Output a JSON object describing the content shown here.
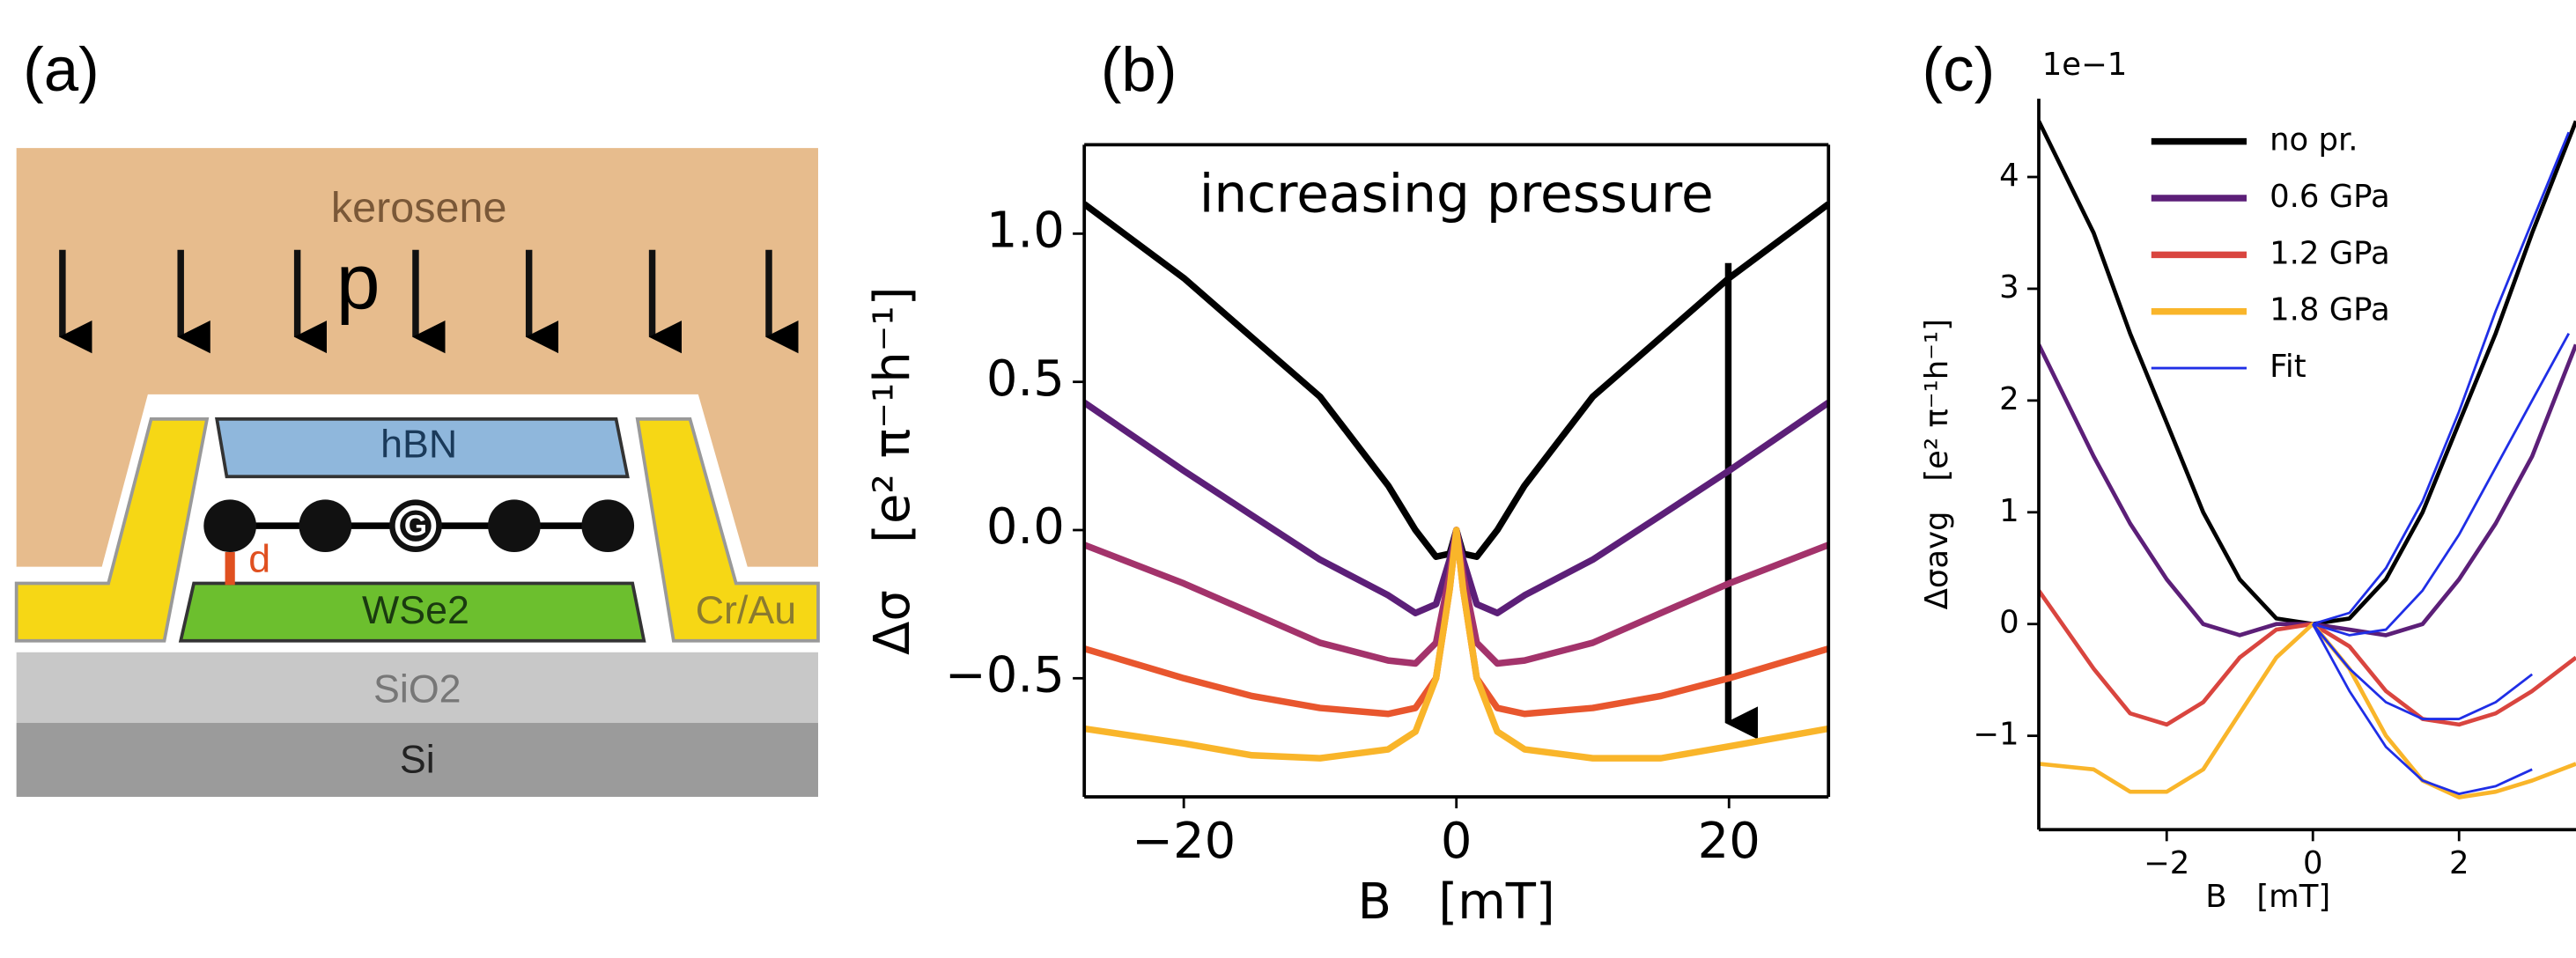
{
  "diagram": {
    "panel_label": "(a)",
    "medium": "kerosene",
    "force": "p",
    "top_layer": "hBN",
    "graphene": "G",
    "distance": "d",
    "substrate_layer": "WSe2",
    "contacts": "Cr/Au",
    "oxide": "SiO2",
    "base": "Si"
  },
  "chart_data": [
    {
      "type": "line",
      "panel_label": "(b)",
      "annotation": "increasing pressure",
      "xlabel": "B   [mT]",
      "ylabel": "Δσ   [e² π⁻¹h⁻¹]",
      "xlim": [
        -27.3,
        27.3
      ],
      "ylim": [
        -0.9,
        1.3
      ],
      "xticks": [
        {
          "value": -20,
          "label": "−20"
        },
        0,
        20
      ],
      "yticks": [
        {
          "value": -0.5,
          "label": "−0.5"
        },
        {
          "value": 0,
          "label": "0.0"
        },
        0.5,
        {
          "value": 1,
          "label": "1.0"
        }
      ],
      "x": [
        -27.3,
        -20,
        -15,
        -10,
        -5,
        -3,
        -1.5,
        -0.5,
        0,
        0.5,
        1.5,
        3,
        5,
        10,
        15,
        20,
        27.3
      ],
      "series": [
        {
          "color": "#000000",
          "values": [
            1.1,
            0.85,
            0.65,
            0.45,
            0.15,
            0.0,
            -0.09,
            -0.08,
            0,
            -0.08,
            -0.09,
            0.0,
            0.15,
            0.45,
            0.65,
            0.85,
            1.1
          ]
        },
        {
          "color": "#5c1f78",
          "values": [
            0.43,
            0.2,
            0.05,
            -0.1,
            -0.22,
            -0.28,
            -0.25,
            -0.1,
            0,
            -0.1,
            -0.25,
            -0.28,
            -0.22,
            -0.1,
            0.05,
            0.2,
            0.43
          ]
        },
        {
          "color": "#a3336b",
          "values": [
            -0.05,
            -0.18,
            -0.28,
            -0.38,
            -0.44,
            -0.45,
            -0.38,
            -0.15,
            0,
            -0.15,
            -0.38,
            -0.45,
            -0.44,
            -0.38,
            -0.28,
            -0.18,
            -0.05
          ]
        },
        {
          "color": "#e8562e",
          "values": [
            -0.4,
            -0.5,
            -0.56,
            -0.6,
            -0.62,
            -0.6,
            -0.5,
            -0.2,
            0,
            -0.2,
            -0.5,
            -0.6,
            -0.62,
            -0.6,
            -0.56,
            -0.5,
            -0.4
          ]
        },
        {
          "color": "#f9b52a",
          "values": [
            -0.67,
            -0.72,
            -0.76,
            -0.77,
            -0.74,
            -0.68,
            -0.5,
            -0.2,
            0,
            -0.2,
            -0.5,
            -0.68,
            -0.74,
            -0.77,
            -0.77,
            -0.73,
            -0.67
          ]
        }
      ]
    },
    {
      "type": "line",
      "panel_label": "(c)",
      "offset_text": "1e−1",
      "xlabel": "B   [mT]",
      "ylabel": "Δσavg   [e² π⁻¹h⁻¹]",
      "xlim": [
        -3.75,
        3.6
      ],
      "ylim": [
        -1.84,
        4.7
      ],
      "xticks": [
        {
          "value": -2,
          "label": "−2"
        },
        0,
        2
      ],
      "yticks": [
        {
          "value": -1,
          "label": "−1"
        },
        0,
        1,
        2,
        3,
        4
      ],
      "legend": "upper center",
      "x": [
        -3.75,
        -3,
        -2.5,
        -2,
        -1.5,
        -1,
        -0.5,
        0,
        0.5,
        1,
        1.5,
        2,
        2.5,
        3,
        3.6
      ],
      "series": [
        {
          "name": "no pr.",
          "color": "#000000",
          "values": [
            4.5,
            3.5,
            2.6,
            1.8,
            1.0,
            0.4,
            0.05,
            0,
            0.05,
            0.4,
            1.0,
            1.8,
            2.6,
            3.5,
            4.5
          ]
        },
        {
          "name": "0.6 GPa",
          "color": "#5c1f78",
          "values": [
            2.5,
            1.5,
            0.9,
            0.4,
            0.0,
            -0.1,
            0,
            0,
            -0.05,
            -0.1,
            0.0,
            0.4,
            0.9,
            1.5,
            2.5
          ]
        },
        {
          "name": "1.2 GPa",
          "color": "#d9453f",
          "values": [
            0.3,
            -0.4,
            -0.8,
            -0.9,
            -0.7,
            -0.3,
            -0.05,
            0,
            -0.2,
            -0.6,
            -0.85,
            -0.9,
            -0.8,
            -0.6,
            -0.3
          ]
        },
        {
          "name": "1.8 GPa",
          "color": "#f9b52a",
          "values": [
            -1.25,
            -1.3,
            -1.5,
            -1.5,
            -1.3,
            -0.8,
            -0.3,
            0,
            -0.4,
            -1.0,
            -1.4,
            -1.55,
            -1.5,
            -1.4,
            -1.25
          ]
        },
        {
          "name": "Fit",
          "color": "#1f2ee6",
          "thin": true,
          "x": [
            0,
            0.5,
            1,
            1.5,
            2,
            2.5,
            3,
            3.5,
            null,
            0,
            0.5,
            1,
            1.5,
            2,
            2.5,
            3,
            3.5,
            null,
            0,
            0.5,
            1,
            1.5,
            2,
            2.5,
            3,
            null,
            0,
            0.5,
            1,
            1.5,
            2,
            2.5,
            3
          ],
          "values": [
            0,
            0.1,
            0.5,
            1.1,
            1.9,
            2.8,
            3.6,
            4.4,
            null,
            0,
            -0.1,
            -0.05,
            0.3,
            0.8,
            1.4,
            2.0,
            2.6,
            null,
            0,
            -0.4,
            -0.7,
            -0.85,
            -0.85,
            -0.7,
            -0.45,
            null,
            0,
            -0.6,
            -1.1,
            -1.4,
            -1.52,
            -1.45,
            -1.3
          ]
        }
      ]
    }
  ]
}
